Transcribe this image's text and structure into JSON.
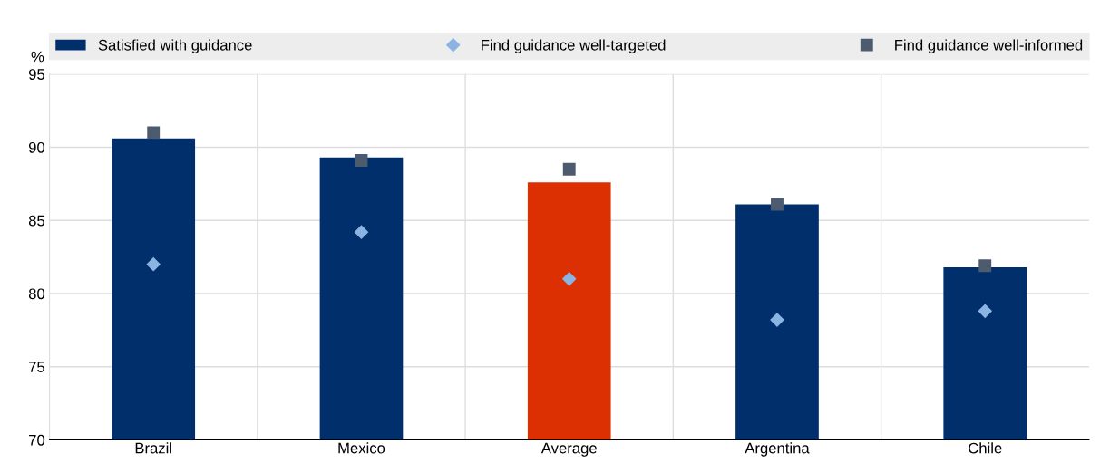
{
  "chart_data": {
    "type": "bar",
    "ylabel": "%",
    "categories": [
      "Brazil",
      "Mexico",
      "Average",
      "Argentina",
      "Chile"
    ],
    "series": [
      {
        "name": "Satisfied with guidance",
        "color": "#002f6c",
        "colors": [
          "#002f6c",
          "#002f6c",
          "#dc2f02",
          "#002f6c",
          "#002f6c"
        ],
        "values": [
          90.6,
          89.3,
          87.6,
          86.1,
          81.8
        ]
      },
      {
        "name": "Find guidance well-targeted",
        "type": "scatter",
        "marker": "diamond",
        "color": "#8cb4e2",
        "values": [
          82.0,
          84.2,
          81.0,
          78.2,
          78.8
        ]
      },
      {
        "name": "Find guidance well-informed",
        "type": "scatter",
        "marker": "square",
        "color": "#4d5b6e",
        "values": [
          91.0,
          89.1,
          88.5,
          86.1,
          81.9
        ]
      }
    ],
    "ylim": [
      70,
      95
    ],
    "yticks": [
      70,
      75,
      80,
      85,
      90,
      95
    ],
    "grid": true,
    "legend": "top"
  }
}
